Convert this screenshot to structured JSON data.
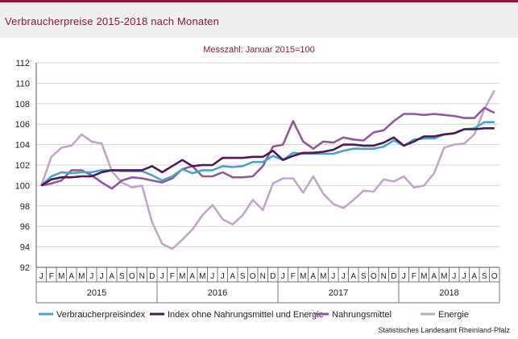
{
  "title": "Verbraucherpreise 2015-2018 nach Monaten",
  "source": "Statistisches Landesamt Rheinland-Pfalz",
  "chart_data": {
    "type": "line",
    "subtitle": "Messzahl: Januar 2015=100",
    "ylim": [
      92,
      112
    ],
    "yticks": [
      92,
      94,
      96,
      98,
      100,
      102,
      104,
      106,
      108,
      110,
      112
    ],
    "grid": true,
    "legend_position": "bottom",
    "month_labels": [
      "J",
      "F",
      "M",
      "A",
      "M",
      "J",
      "J",
      "A",
      "S",
      "O",
      "N",
      "D",
      "J",
      "F",
      "M",
      "A",
      "M",
      "J",
      "J",
      "A",
      "S",
      "O",
      "N",
      "D",
      "J",
      "F",
      "M",
      "A",
      "M",
      "J",
      "J",
      "A",
      "S",
      "O",
      "N",
      "D",
      "J",
      "F",
      "M",
      "A",
      "M",
      "J",
      "J",
      "A",
      "S",
      "O"
    ],
    "years": [
      {
        "label": "2015",
        "start": 0,
        "count": 12
      },
      {
        "label": "2016",
        "start": 12,
        "count": 12
      },
      {
        "label": "2017",
        "start": 24,
        "count": 12
      },
      {
        "label": "2018",
        "start": 36,
        "count": 10
      }
    ],
    "series": [
      {
        "name": "Verbraucherpreisindex",
        "color": "#4aa3c8",
        "values": [
          100,
          100.9,
          101.3,
          101.2,
          101.3,
          101.3,
          101.5,
          101.5,
          101.4,
          101.4,
          101.4,
          101.0,
          100.5,
          100.9,
          101.6,
          101.2,
          101.5,
          101.5,
          101.9,
          101.8,
          101.9,
          102.3,
          102.3,
          102.9,
          102.5,
          103.2,
          103.1,
          103.1,
          103.1,
          103.1,
          103.4,
          103.6,
          103.6,
          103.6,
          103.8,
          104.4,
          103.9,
          104.5,
          104.6,
          104.6,
          105.0,
          105.1,
          105.5,
          105.6,
          106.2,
          106.2
        ]
      },
      {
        "name": "Index ohne Nahrungsmittel und Energie",
        "color": "#4b1a55",
        "values": [
          100,
          100.6,
          100.8,
          100.8,
          100.9,
          100.9,
          101.3,
          101.5,
          101.5,
          101.5,
          101.5,
          101.9,
          101.3,
          101.9,
          102.5,
          101.9,
          102.0,
          102.0,
          102.7,
          102.7,
          102.7,
          102.8,
          102.8,
          103.4,
          102.5,
          102.9,
          103.2,
          103.2,
          103.3,
          103.5,
          104.0,
          104.0,
          103.9,
          103.9,
          104.2,
          104.7,
          103.9,
          104.3,
          104.8,
          104.8,
          105.0,
          105.1,
          105.5,
          105.5,
          105.6,
          105.6
        ]
      },
      {
        "name": "Nahrungsmittel",
        "color": "#8e5a99",
        "values": [
          100,
          100.2,
          100.5,
          101.5,
          101.5,
          101.0,
          100.3,
          99.7,
          100.5,
          100.8,
          100.7,
          100.5,
          100.3,
          100.7,
          101.6,
          101.9,
          100.9,
          100.9,
          101.3,
          100.8,
          100.8,
          100.9,
          101.9,
          103.8,
          104.0,
          106.3,
          104.3,
          103.6,
          104.3,
          104.2,
          104.7,
          104.5,
          104.4,
          105.2,
          105.4,
          106.3,
          107.0,
          107.0,
          106.9,
          107.0,
          106.9,
          106.8,
          106.6,
          106.6,
          107.6,
          107.1
        ]
      },
      {
        "name": "Energie",
        "color": "#c2a5cb",
        "values": [
          100,
          102.8,
          103.7,
          103.9,
          105.0,
          104.3,
          104.1,
          101.4,
          100.3,
          99.8,
          100.0,
          96.4,
          94.3,
          93.8,
          94.7,
          95.7,
          97.1,
          98.1,
          96.7,
          96.2,
          97.1,
          98.6,
          97.6,
          100.2,
          100.7,
          100.7,
          99.3,
          100.9,
          99.2,
          98.2,
          97.8,
          98.6,
          99.5,
          99.4,
          100.6,
          100.4,
          100.9,
          99.8,
          100.0,
          101.2,
          103.7,
          104.0,
          104.1,
          105.0,
          107.5,
          109.3
        ]
      }
    ]
  }
}
